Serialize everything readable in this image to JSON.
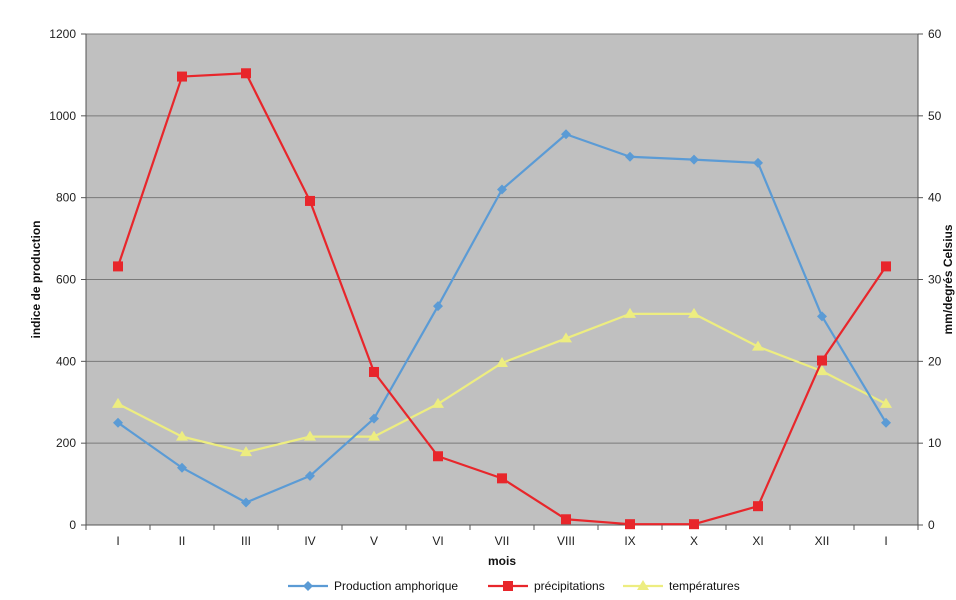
{
  "chart_data": {
    "type": "line",
    "categories": [
      "I",
      "II",
      "III",
      "IV",
      "V",
      "VI",
      "VII",
      "VIII",
      "IX",
      "X",
      "XI",
      "XII",
      "I"
    ],
    "xlabel": "mois",
    "ylabel": "indice de production",
    "y2label": "mm/degrés Celsius",
    "ylim": [
      0,
      1200
    ],
    "y2lim": [
      0,
      60
    ],
    "yticks": [
      "0",
      "200",
      "400",
      "600",
      "800",
      "1000",
      "1200"
    ],
    "y2ticks": [
      "0",
      "10",
      "20",
      "30",
      "40",
      "50",
      "60"
    ],
    "grid": true,
    "legend_position": "bottom",
    "series": [
      {
        "name": "Production amphorique",
        "axis": "left",
        "marker": "diamond",
        "color": "#5b9bd5",
        "values": [
          250,
          140,
          55,
          120,
          260,
          535,
          820,
          955,
          900,
          893,
          885,
          510,
          250
        ]
      },
      {
        "name": "précipitations",
        "axis": "right",
        "marker": "square",
        "color": "#e8262b",
        "values": [
          31.6,
          54.8,
          55.2,
          39.6,
          18.7,
          8.4,
          5.7,
          0.7,
          0.1,
          0.1,
          2.3,
          20.1,
          31.6
        ]
      },
      {
        "name": "températures",
        "axis": "right",
        "marker": "triangle",
        "color": "#eded80",
        "values": [
          14.8,
          10.8,
          8.9,
          10.8,
          10.8,
          14.8,
          19.8,
          22.8,
          25.8,
          25.8,
          21.8,
          18.8,
          14.8
        ]
      }
    ]
  }
}
